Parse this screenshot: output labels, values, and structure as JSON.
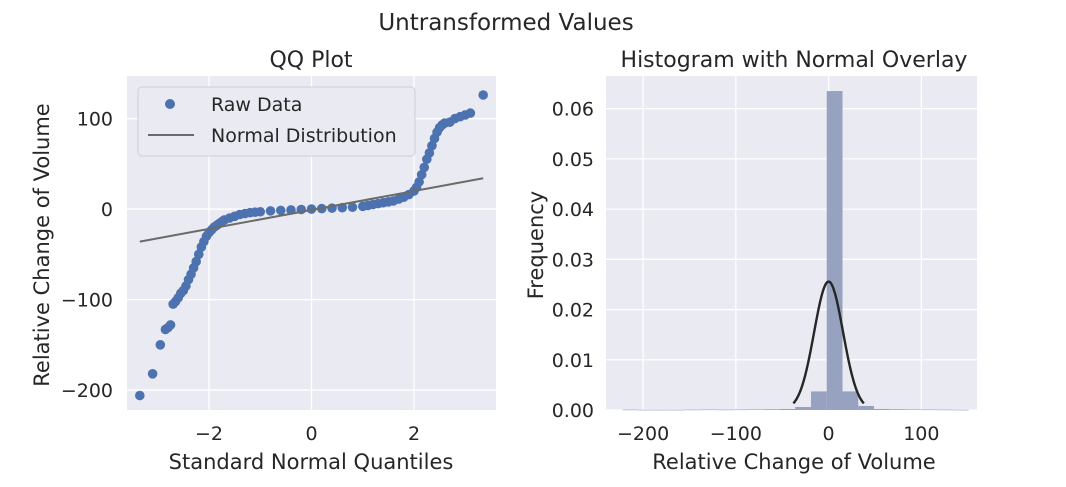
{
  "figure": {
    "suptitle": "Untransformed Values"
  },
  "colors": {
    "axes_bg": "#eaeaf2",
    "grid": "#ffffff",
    "points": "#4c72b0",
    "normal_line": "#6b6b6b",
    "hist_bars": "#97a2c1",
    "pdf_line": "#262626",
    "text": "#262626"
  },
  "chart_data": [
    {
      "type": "scatter",
      "title": "QQ Plot",
      "xlabel": "Standard Normal Quantiles",
      "ylabel": "Relative Change of Volume",
      "xlim": [
        -3.6,
        3.6
      ],
      "ylim": [
        -222,
        147
      ],
      "xticks": [
        -2,
        0,
        2
      ],
      "xtick_labels": [
        "−2",
        "0",
        "2"
      ],
      "yticks": [
        -200,
        -100,
        0,
        100
      ],
      "ytick_labels": [
        "−200",
        "−100",
        "0",
        "100"
      ],
      "grid": true,
      "legend": {
        "position": "top-left",
        "entries": [
          "Raw Data",
          "Normal Distribution"
        ]
      },
      "series": [
        {
          "name": "Raw Data",
          "kind": "points",
          "x": [
            -3.35,
            -3.1,
            -2.95,
            -2.85,
            -2.8,
            -2.75,
            -2.7,
            -2.65,
            -2.6,
            -2.55,
            -2.5,
            -2.45,
            -2.4,
            -2.35,
            -2.3,
            -2.25,
            -2.2,
            -2.15,
            -2.1,
            -2.05,
            -2.0,
            -1.95,
            -1.9,
            -1.85,
            -1.8,
            -1.75,
            -1.7,
            -1.6,
            -1.5,
            -1.4,
            -1.3,
            -1.2,
            -1.1,
            -1.0,
            -0.8,
            -0.6,
            -0.4,
            -0.2,
            0.0,
            0.2,
            0.4,
            0.6,
            0.8,
            1.0,
            1.1,
            1.2,
            1.3,
            1.4,
            1.5,
            1.6,
            1.7,
            1.8,
            1.9,
            2.0,
            2.05,
            2.1,
            2.15,
            2.2,
            2.25,
            2.3,
            2.35,
            2.4,
            2.45,
            2.5,
            2.55,
            2.6,
            2.7,
            2.8,
            2.9,
            3.0,
            3.1,
            3.35
          ],
          "y": [
            -206,
            -182,
            -150,
            -133,
            -131,
            -128,
            -105,
            -102,
            -98,
            -93,
            -90,
            -85,
            -78,
            -72,
            -65,
            -58,
            -50,
            -42,
            -36,
            -30,
            -26,
            -23,
            -20,
            -18,
            -16,
            -14,
            -12,
            -10,
            -8,
            -6,
            -5,
            -4,
            -3.5,
            -3,
            -2,
            -1.5,
            -1,
            -0.5,
            0,
            0.5,
            1,
            1.5,
            2,
            3,
            4,
            5,
            6,
            7,
            8,
            9,
            11,
            13,
            16,
            20,
            24,
            30,
            38,
            46,
            55,
            62,
            70,
            78,
            85,
            90,
            93,
            95,
            96,
            100,
            102,
            104,
            106,
            126
          ]
        },
        {
          "name": "Normal Distribution",
          "kind": "line",
          "x": [
            -3.35,
            3.35
          ],
          "y": [
            -36,
            34
          ]
        }
      ]
    },
    {
      "type": "bar",
      "title": "Histogram with Normal Overlay",
      "xlabel": "Relative Change of Volume",
      "ylabel": "Frequency",
      "xlim": [
        -240,
        160
      ],
      "ylim": [
        0,
        0.0665
      ],
      "xticks": [
        -200,
        -100,
        0,
        100
      ],
      "xtick_labels": [
        "−200",
        "−100",
        "0",
        "100"
      ],
      "yticks": [
        0.0,
        0.01,
        0.02,
        0.03,
        0.04,
        0.05,
        0.06
      ],
      "ytick_labels": [
        "0.00",
        "0.01",
        "0.02",
        "0.03",
        "0.04",
        "0.05",
        "0.06"
      ],
      "grid": true,
      "bins": [
        {
          "start": -222,
          "end": -206,
          "value": 8e-05
        },
        {
          "start": -206,
          "end": -189,
          "value": 5e-05
        },
        {
          "start": -189,
          "end": -172,
          "value": 5e-05
        },
        {
          "start": -172,
          "end": -155,
          "value": 5e-05
        },
        {
          "start": -155,
          "end": -138,
          "value": 8e-05
        },
        {
          "start": -138,
          "end": -121,
          "value": 0.0001
        },
        {
          "start": -121,
          "end": -104,
          "value": 8e-05
        },
        {
          "start": -104,
          "end": -87,
          "value": 0.0001
        },
        {
          "start": -87,
          "end": -70,
          "value": 0.00012
        },
        {
          "start": -70,
          "end": -53,
          "value": 0.00015
        },
        {
          "start": -53,
          "end": -36,
          "value": 0.0002
        },
        {
          "start": -36,
          "end": -19,
          "value": 0.0006
        },
        {
          "start": -19,
          "end": -2,
          "value": 0.0037
        },
        {
          "start": -2,
          "end": 15,
          "value": 0.0635
        },
        {
          "start": 15,
          "end": 32,
          "value": 0.0037
        },
        {
          "start": 32,
          "end": 49,
          "value": 0.0008
        },
        {
          "start": 49,
          "end": 66,
          "value": 0.0002
        },
        {
          "start": 66,
          "end": 83,
          "value": 0.00015
        },
        {
          "start": 83,
          "end": 100,
          "value": 0.00012
        },
        {
          "start": 100,
          "end": 117,
          "value": 0.0001
        },
        {
          "start": 117,
          "end": 134,
          "value": 8e-05
        },
        {
          "start": 134,
          "end": 151,
          "value": 5e-05
        }
      ],
      "normal_overlay": {
        "mean": 0,
        "std": 15.6,
        "x_range": [
          -38,
          38
        ]
      }
    }
  ]
}
